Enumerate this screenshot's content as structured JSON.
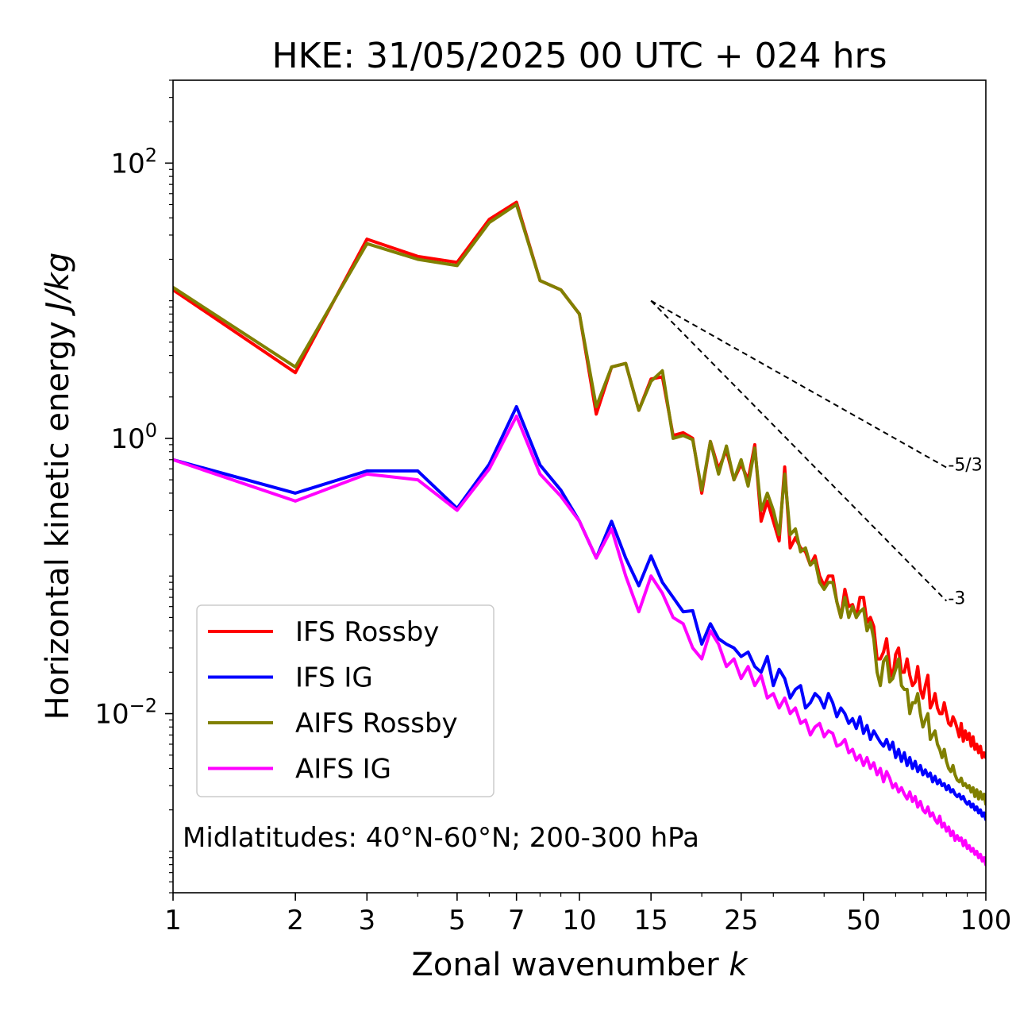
{
  "chart_data": {
    "type": "line",
    "title": "HKE: 31/05/2025 00 UTC + 024 hrs",
    "xlabel": "Zonal wavenumber ",
    "xlabel_italic": "k",
    "ylabel": "Horizontal kinetic energy ",
    "ylabel_italic": "J/kg",
    "x_scale": "log",
    "y_scale": "log",
    "xlim": [
      1,
      100
    ],
    "ylim": [
      0.0005,
      400
    ],
    "x_ticks": [
      {
        "value": 1,
        "label": "1"
      },
      {
        "value": 2,
        "label": "2"
      },
      {
        "value": 3,
        "label": "3"
      },
      {
        "value": 5,
        "label": "5"
      },
      {
        "value": 7,
        "label": "7"
      },
      {
        "value": 10,
        "label": "10"
      },
      {
        "value": 15,
        "label": "15"
      },
      {
        "value": 25,
        "label": "25"
      },
      {
        "value": 50,
        "label": "50"
      },
      {
        "value": 100,
        "label": "100"
      }
    ],
    "y_ticks": [
      {
        "value": 100,
        "base": "10",
        "exp": "2"
      },
      {
        "value": 1,
        "base": "10",
        "exp": "0"
      },
      {
        "value": 0.01,
        "base": "10",
        "exp": "−2"
      }
    ],
    "grid": false,
    "legend_position": "lower-left",
    "annotation": "Midlatitudes: 40°N-60°N; 200-300 hPa",
    "reference_lines": [
      {
        "label": "-5/3",
        "slope": -1.6667,
        "x": [
          15,
          80
        ],
        "y0": 10
      },
      {
        "label": "-3",
        "slope": -3,
        "x": [
          15,
          80
        ],
        "y0": 10
      }
    ],
    "series": [
      {
        "name": "IFS Rossby",
        "color": "#ff0000",
        "x": [
          1,
          2,
          3,
          4,
          5,
          6,
          7,
          8,
          9,
          10,
          11,
          12,
          13,
          14,
          15,
          16,
          17,
          18,
          19,
          20,
          21,
          22,
          23,
          24,
          25,
          26,
          27,
          28,
          29,
          30,
          31,
          32,
          33,
          34,
          35,
          36,
          37,
          38,
          39,
          40,
          41,
          42,
          43,
          44,
          45,
          46,
          47,
          48,
          49,
          50,
          51,
          52,
          53,
          54,
          55,
          56,
          57,
          58,
          59,
          60,
          61,
          62,
          63,
          64,
          65,
          66,
          67,
          68,
          69,
          70,
          71,
          72,
          73,
          74,
          75,
          76,
          77,
          78,
          79,
          80,
          81,
          82,
          83,
          84,
          85,
          86,
          87,
          88,
          89,
          90,
          91,
          92,
          93,
          94,
          95,
          96,
          97,
          98,
          99,
          100
        ],
        "y": [
          12,
          3.0,
          28,
          21,
          19,
          39,
          52,
          14,
          12,
          8,
          1.5,
          3.3,
          3.5,
          1.6,
          2.7,
          2.8,
          1.05,
          1.1,
          1.0,
          0.4,
          0.95,
          0.6,
          0.82,
          0.5,
          0.65,
          0.5,
          0.9,
          0.25,
          0.35,
          0.25,
          0.18,
          0.62,
          0.16,
          0.19,
          0.16,
          0.15,
          0.12,
          0.14,
          0.1,
          0.085,
          0.1,
          0.1,
          0.065,
          0.05,
          0.08,
          0.06,
          0.062,
          0.05,
          0.07,
          0.07,
          0.046,
          0.05,
          0.043,
          0.025,
          0.025,
          0.028,
          0.035,
          0.022,
          0.018,
          0.027,
          0.03,
          0.02,
          0.02,
          0.025,
          0.019,
          0.016,
          0.017,
          0.022,
          0.015,
          0.013,
          0.016,
          0.019,
          0.011,
          0.012,
          0.014,
          0.011,
          0.01,
          0.01,
          0.012,
          0.01,
          0.0085,
          0.0082,
          0.0095,
          0.0088,
          0.0078,
          0.0068,
          0.0085,
          0.0063,
          0.0075,
          0.0065,
          0.0072,
          0.0058,
          0.0068,
          0.0055,
          0.006,
          0.0052,
          0.0058,
          0.0048,
          0.0052,
          0.0048
        ]
      },
      {
        "name": "IFS IG",
        "color": "#0000ff",
        "x": [
          1,
          2,
          3,
          4,
          5,
          6,
          7,
          8,
          9,
          10,
          11,
          12,
          13,
          14,
          15,
          16,
          17,
          18,
          19,
          20,
          21,
          22,
          23,
          24,
          25,
          26,
          27,
          28,
          29,
          30,
          31,
          32,
          33,
          34,
          35,
          36,
          37,
          38,
          39,
          40,
          41,
          42,
          43,
          44,
          45,
          46,
          47,
          48,
          49,
          50,
          51,
          52,
          53,
          54,
          55,
          56,
          57,
          58,
          59,
          60,
          61,
          62,
          63,
          64,
          65,
          66,
          67,
          68,
          69,
          70,
          71,
          72,
          73,
          74,
          75,
          76,
          77,
          78,
          79,
          80,
          81,
          82,
          83,
          84,
          85,
          86,
          87,
          88,
          89,
          90,
          91,
          92,
          93,
          94,
          95,
          96,
          97,
          98,
          99,
          100
        ],
        "y": [
          0.7,
          0.4,
          0.58,
          0.58,
          0.31,
          0.65,
          1.7,
          0.64,
          0.42,
          0.25,
          0.135,
          0.25,
          0.135,
          0.085,
          0.14,
          0.09,
          0.07,
          0.055,
          0.056,
          0.032,
          0.045,
          0.035,
          0.032,
          0.03,
          0.026,
          0.028,
          0.022,
          0.02,
          0.026,
          0.016,
          0.021,
          0.018,
          0.013,
          0.015,
          0.016,
          0.011,
          0.012,
          0.014,
          0.013,
          0.011,
          0.014,
          0.012,
          0.0095,
          0.011,
          0.01,
          0.0085,
          0.0092,
          0.0078,
          0.0095,
          0.0072,
          0.0082,
          0.0065,
          0.0075,
          0.0068,
          0.0062,
          0.0058,
          0.0065,
          0.0055,
          0.0062,
          0.0048,
          0.0055,
          0.0045,
          0.0052,
          0.0042,
          0.0048,
          0.004,
          0.0045,
          0.0038,
          0.0042,
          0.0036,
          0.0039,
          0.0035,
          0.0037,
          0.0032,
          0.0035,
          0.0031,
          0.0033,
          0.003,
          0.0031,
          0.0028,
          0.003,
          0.0027,
          0.0028,
          0.0026,
          0.0025,
          0.0026,
          0.0024,
          0.0025,
          0.0023,
          0.0022,
          0.0023,
          0.0021,
          0.0022,
          0.002,
          0.0021,
          0.0019,
          0.002,
          0.0018,
          0.0019,
          0.0017
        ]
      },
      {
        "name": "AIFS Rossby",
        "color": "#808000",
        "x": [
          1,
          2,
          3,
          4,
          5,
          6,
          7,
          8,
          9,
          10,
          11,
          12,
          13,
          14,
          15,
          16,
          17,
          18,
          19,
          20,
          21,
          22,
          23,
          24,
          25,
          26,
          27,
          28,
          29,
          30,
          31,
          32,
          33,
          34,
          35,
          36,
          37,
          38,
          39,
          40,
          41,
          42,
          43,
          44,
          45,
          46,
          47,
          48,
          49,
          50,
          51,
          52,
          53,
          54,
          55,
          56,
          57,
          58,
          59,
          60,
          61,
          62,
          63,
          64,
          65,
          66,
          67,
          68,
          69,
          70,
          71,
          72,
          73,
          74,
          75,
          76,
          77,
          78,
          79,
          80,
          81,
          82,
          83,
          84,
          85,
          86,
          87,
          88,
          89,
          90,
          91,
          92,
          93,
          94,
          95,
          96,
          97,
          98,
          99,
          100
        ],
        "y": [
          12.5,
          3.3,
          26,
          20,
          18,
          37,
          50,
          14,
          12,
          8,
          1.7,
          3.3,
          3.5,
          1.6,
          2.6,
          3.1,
          1.0,
          1.05,
          0.98,
          0.42,
          0.95,
          0.55,
          0.88,
          0.5,
          0.7,
          0.45,
          0.85,
          0.3,
          0.4,
          0.3,
          0.2,
          0.55,
          0.2,
          0.22,
          0.15,
          0.16,
          0.12,
          0.13,
          0.09,
          0.08,
          0.09,
          0.09,
          0.065,
          0.05,
          0.07,
          0.05,
          0.06,
          0.05,
          0.055,
          0.058,
          0.04,
          0.046,
          0.035,
          0.02,
          0.016,
          0.024,
          0.026,
          0.017,
          0.018,
          0.021,
          0.025,
          0.016,
          0.015,
          0.015,
          0.01,
          0.012,
          0.012,
          0.014,
          0.01,
          0.008,
          0.009,
          0.01,
          0.0065,
          0.007,
          0.0075,
          0.006,
          0.0055,
          0.0048,
          0.0055,
          0.0045,
          0.004,
          0.0038,
          0.0042,
          0.0036,
          0.0033,
          0.0032,
          0.0034,
          0.003,
          0.0031,
          0.0029,
          0.003,
          0.0027,
          0.0029,
          0.0025,
          0.0028,
          0.0024,
          0.0027,
          0.0024,
          0.0026,
          0.0022
        ]
      },
      {
        "name": "AIFS IG",
        "color": "#ff00ff",
        "x": [
          1,
          2,
          3,
          4,
          5,
          6,
          7,
          8,
          9,
          10,
          11,
          12,
          13,
          14,
          15,
          16,
          17,
          18,
          19,
          20,
          21,
          22,
          23,
          24,
          25,
          26,
          27,
          28,
          29,
          30,
          31,
          32,
          33,
          34,
          35,
          36,
          37,
          38,
          39,
          40,
          41,
          42,
          43,
          44,
          45,
          46,
          47,
          48,
          49,
          50,
          51,
          52,
          53,
          54,
          55,
          56,
          57,
          58,
          59,
          60,
          61,
          62,
          63,
          64,
          65,
          66,
          67,
          68,
          69,
          70,
          71,
          72,
          73,
          74,
          75,
          76,
          77,
          78,
          79,
          80,
          81,
          82,
          83,
          84,
          85,
          86,
          87,
          88,
          89,
          90,
          91,
          92,
          93,
          94,
          95,
          96,
          97,
          98,
          99,
          100
        ],
        "y": [
          0.7,
          0.35,
          0.55,
          0.5,
          0.3,
          0.6,
          1.45,
          0.55,
          0.38,
          0.25,
          0.135,
          0.22,
          0.1,
          0.055,
          0.1,
          0.075,
          0.05,
          0.045,
          0.03,
          0.025,
          0.04,
          0.032,
          0.022,
          0.025,
          0.018,
          0.022,
          0.016,
          0.019,
          0.013,
          0.014,
          0.011,
          0.013,
          0.01,
          0.011,
          0.0085,
          0.009,
          0.007,
          0.008,
          0.0085,
          0.0068,
          0.0075,
          0.0072,
          0.0058,
          0.006,
          0.0065,
          0.0052,
          0.0055,
          0.0046,
          0.005,
          0.0042,
          0.0048,
          0.004,
          0.0044,
          0.0036,
          0.004,
          0.0032,
          0.0038,
          0.0034,
          0.0029,
          0.0031,
          0.0027,
          0.0029,
          0.0026,
          0.0024,
          0.0027,
          0.0023,
          0.0025,
          0.0021,
          0.0023,
          0.002,
          0.0019,
          0.0021,
          0.0018,
          0.0019,
          0.0017,
          0.0016,
          0.0018,
          0.0015,
          0.0016,
          0.0014,
          0.0015,
          0.0013,
          0.0014,
          0.0012,
          0.0013,
          0.0012,
          0.00125,
          0.0011,
          0.0012,
          0.00105,
          0.0011,
          0.001,
          0.00105,
          0.00095,
          0.001,
          0.0009,
          0.00095,
          0.00085,
          0.0009,
          0.0008
        ]
      }
    ]
  }
}
